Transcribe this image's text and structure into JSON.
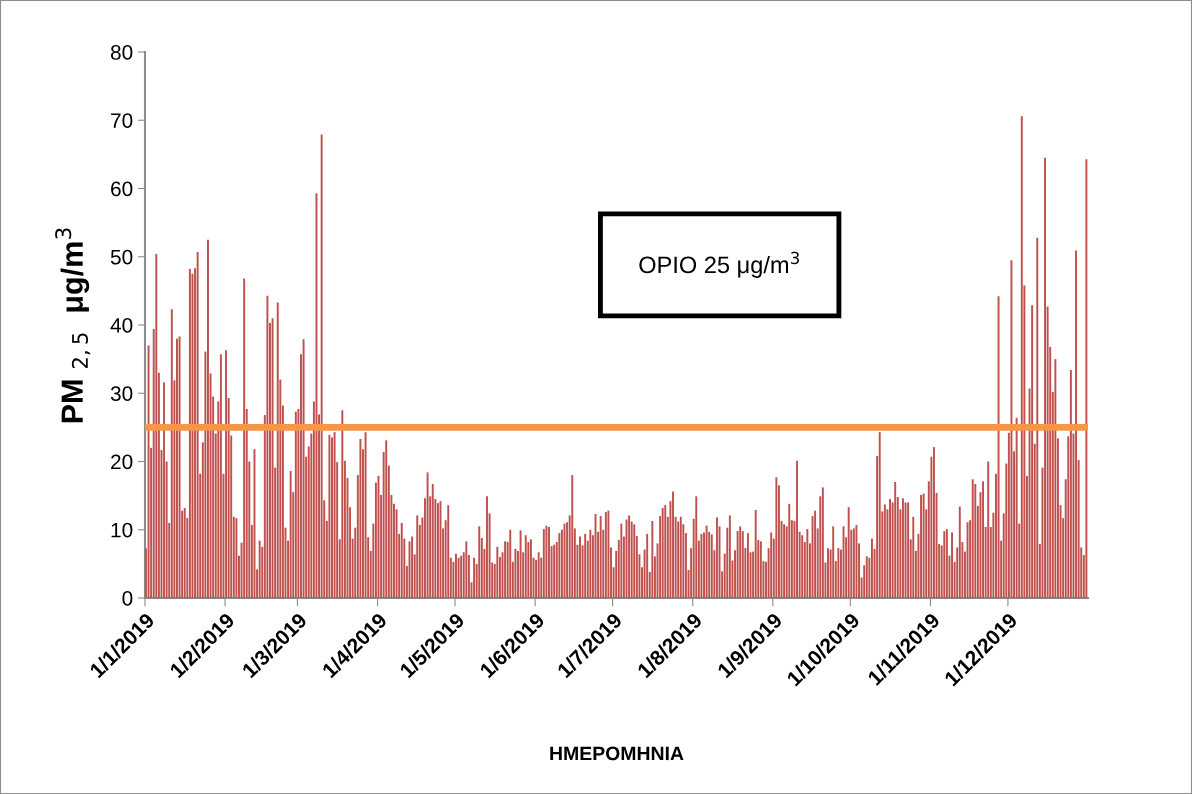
{
  "chart_data": {
    "type": "bar",
    "xlabel": "ΗΜΕΡΟΜΗΝΙΑ",
    "ylabel": "PM $_{2,5}$  μg/m$^{3}$",
    "x": [
      "2019-01-01",
      "2019-01-02",
      "2019-01-03",
      "2019-01-04",
      "2019-01-05",
      "2019-01-06",
      "2019-01-07",
      "2019-01-08",
      "2019-01-09",
      "2019-01-10",
      "2019-01-11",
      "2019-01-12",
      "2019-01-13",
      "2019-01-14",
      "2019-01-15",
      "2019-01-16",
      "2019-01-17",
      "2019-01-18",
      "2019-01-19",
      "2019-01-20",
      "2019-01-21",
      "2019-01-22",
      "2019-01-23",
      "2019-01-24",
      "2019-01-25",
      "2019-01-26",
      "2019-01-27",
      "2019-01-28",
      "2019-01-29",
      "2019-01-30",
      "2019-01-31",
      "2019-02-01",
      "2019-02-02",
      "2019-02-03",
      "2019-02-04",
      "2019-02-05",
      "2019-02-06",
      "2019-02-07",
      "2019-02-08",
      "2019-02-09",
      "2019-02-10",
      "2019-02-11",
      "2019-02-12",
      "2019-02-13",
      "2019-02-14",
      "2019-02-15",
      "2019-02-16",
      "2019-02-17",
      "2019-02-18",
      "2019-02-19",
      "2019-02-20",
      "2019-02-21",
      "2019-02-22",
      "2019-02-23",
      "2019-02-24",
      "2019-02-25",
      "2019-02-26",
      "2019-02-27",
      "2019-02-28",
      "2019-03-01",
      "2019-03-02",
      "2019-03-03",
      "2019-03-04",
      "2019-03-05",
      "2019-03-06",
      "2019-03-07",
      "2019-03-08",
      "2019-03-09",
      "2019-03-10",
      "2019-03-11",
      "2019-03-12",
      "2019-03-13",
      "2019-03-14",
      "2019-03-15",
      "2019-03-16",
      "2019-03-17",
      "2019-03-18",
      "2019-03-19",
      "2019-03-20",
      "2019-03-21",
      "2019-03-22",
      "2019-03-23",
      "2019-03-24",
      "2019-03-25",
      "2019-03-26",
      "2019-03-27",
      "2019-03-28",
      "2019-03-29",
      "2019-03-30",
      "2019-03-31",
      "2019-04-01",
      "2019-04-02",
      "2019-04-03",
      "2019-04-04",
      "2019-04-05",
      "2019-04-06",
      "2019-04-07",
      "2019-04-08",
      "2019-04-09",
      "2019-04-10",
      "2019-04-11",
      "2019-04-12",
      "2019-04-13",
      "2019-04-14",
      "2019-04-15",
      "2019-04-16",
      "2019-04-17",
      "2019-04-18",
      "2019-04-19",
      "2019-04-20",
      "2019-04-21",
      "2019-04-22",
      "2019-04-23",
      "2019-04-24",
      "2019-04-25",
      "2019-04-26",
      "2019-04-27",
      "2019-04-28",
      "2019-04-29",
      "2019-04-30",
      "2019-05-01",
      "2019-05-02",
      "2019-05-03",
      "2019-05-04",
      "2019-05-05",
      "2019-05-06",
      "2019-05-07",
      "2019-05-08",
      "2019-05-09",
      "2019-05-10",
      "2019-05-11",
      "2019-05-12",
      "2019-05-13",
      "2019-05-14",
      "2019-05-15",
      "2019-05-16",
      "2019-05-17",
      "2019-05-18",
      "2019-05-19",
      "2019-05-20",
      "2019-05-21",
      "2019-05-22",
      "2019-05-23",
      "2019-05-24",
      "2019-05-25",
      "2019-05-26",
      "2019-05-27",
      "2019-05-28",
      "2019-05-29",
      "2019-05-30",
      "2019-05-31",
      "2019-06-01",
      "2019-06-02",
      "2019-06-03",
      "2019-06-04",
      "2019-06-05",
      "2019-06-06",
      "2019-06-07",
      "2019-06-08",
      "2019-06-09",
      "2019-06-10",
      "2019-06-11",
      "2019-06-12",
      "2019-06-13",
      "2019-06-14",
      "2019-06-15",
      "2019-06-16",
      "2019-06-17",
      "2019-06-18",
      "2019-06-19",
      "2019-06-20",
      "2019-06-21",
      "2019-06-22",
      "2019-06-23",
      "2019-06-24",
      "2019-06-25",
      "2019-06-26",
      "2019-06-27",
      "2019-06-28",
      "2019-06-29",
      "2019-06-30",
      "2019-07-01",
      "2019-07-02",
      "2019-07-03",
      "2019-07-04",
      "2019-07-05",
      "2019-07-06",
      "2019-07-07",
      "2019-07-08",
      "2019-07-09",
      "2019-07-10",
      "2019-07-11",
      "2019-07-12",
      "2019-07-13",
      "2019-07-14",
      "2019-07-15",
      "2019-07-16",
      "2019-07-17",
      "2019-07-18",
      "2019-07-19",
      "2019-07-20",
      "2019-07-21",
      "2019-07-22",
      "2019-07-23",
      "2019-07-24",
      "2019-07-25",
      "2019-07-26",
      "2019-07-27",
      "2019-07-28",
      "2019-07-29",
      "2019-07-30",
      "2019-07-31",
      "2019-08-01",
      "2019-08-02",
      "2019-08-03",
      "2019-08-04",
      "2019-08-05",
      "2019-08-06",
      "2019-08-07",
      "2019-08-08",
      "2019-08-09",
      "2019-08-10",
      "2019-08-11",
      "2019-08-12",
      "2019-08-13",
      "2019-08-14",
      "2019-08-15",
      "2019-08-16",
      "2019-08-17",
      "2019-08-18",
      "2019-08-19",
      "2019-08-20",
      "2019-08-21",
      "2019-08-22",
      "2019-08-23",
      "2019-08-24",
      "2019-08-25",
      "2019-08-26",
      "2019-08-27",
      "2019-08-28",
      "2019-08-29",
      "2019-08-30",
      "2019-08-31",
      "2019-09-01",
      "2019-09-02",
      "2019-09-03",
      "2019-09-04",
      "2019-09-05",
      "2019-09-06",
      "2019-09-07",
      "2019-09-08",
      "2019-09-09",
      "2019-09-10",
      "2019-09-11",
      "2019-09-12",
      "2019-09-13",
      "2019-09-14",
      "2019-09-15",
      "2019-09-16",
      "2019-09-17",
      "2019-09-18",
      "2019-09-19",
      "2019-09-20",
      "2019-09-21",
      "2019-09-22",
      "2019-09-23",
      "2019-09-24",
      "2019-09-25",
      "2019-09-26",
      "2019-09-27",
      "2019-09-28",
      "2019-09-29",
      "2019-09-30",
      "2019-10-01",
      "2019-10-02",
      "2019-10-03",
      "2019-10-04",
      "2019-10-05",
      "2019-10-06",
      "2019-10-07",
      "2019-10-08",
      "2019-10-09",
      "2019-10-10",
      "2019-10-11",
      "2019-10-12",
      "2019-10-13",
      "2019-10-14",
      "2019-10-15",
      "2019-10-16",
      "2019-10-17",
      "2019-10-18",
      "2019-10-19",
      "2019-10-20",
      "2019-10-21",
      "2019-10-22",
      "2019-10-23",
      "2019-10-24",
      "2019-10-25",
      "2019-10-26",
      "2019-10-27",
      "2019-10-28",
      "2019-10-29",
      "2019-10-30",
      "2019-10-31",
      "2019-11-01",
      "2019-11-02",
      "2019-11-03",
      "2019-11-04",
      "2019-11-05",
      "2019-11-06",
      "2019-11-07",
      "2019-11-08",
      "2019-11-09",
      "2019-11-10",
      "2019-11-11",
      "2019-11-12",
      "2019-11-13",
      "2019-11-14",
      "2019-11-15",
      "2019-11-16",
      "2019-11-17",
      "2019-11-18",
      "2019-11-19",
      "2019-11-20",
      "2019-11-21",
      "2019-11-22",
      "2019-11-23",
      "2019-11-24",
      "2019-11-25",
      "2019-11-26",
      "2019-11-27",
      "2019-11-28",
      "2019-11-29",
      "2019-11-30",
      "2019-12-01",
      "2019-12-02",
      "2019-12-03",
      "2019-12-04",
      "2019-12-05",
      "2019-12-06",
      "2019-12-07",
      "2019-12-08",
      "2019-12-09",
      "2019-12-10",
      "2019-12-11",
      "2019-12-12",
      "2019-12-13",
      "2019-12-14",
      "2019-12-15",
      "2019-12-16",
      "2019-12-17",
      "2019-12-18",
      "2019-12-19",
      "2019-12-20",
      "2019-12-21",
      "2019-12-22",
      "2019-12-23",
      "2019-12-24",
      "2019-12-25",
      "2019-12-26",
      "2019-12-27",
      "2019-12-28",
      "2019-12-29",
      "2019-12-30",
      "2019-12-31"
    ],
    "xlim": [
      "2019-01-01",
      "2020-01-01"
    ],
    "xticks": [
      {
        "value": "2019-01-01",
        "label": "1/1/2019"
      },
      {
        "value": "2019-02-01",
        "label": "1/2/2019"
      },
      {
        "value": "2019-03-01",
        "label": "1/3/2019"
      },
      {
        "value": "2019-04-01",
        "label": "1/4/2019"
      },
      {
        "value": "2019-05-01",
        "label": "1/5/2019"
      },
      {
        "value": "2019-06-01",
        "label": "1/6/2019"
      },
      {
        "value": "2019-07-01",
        "label": "1/7/2019"
      },
      {
        "value": "2019-08-01",
        "label": "1/8/2019"
      },
      {
        "value": "2019-09-01",
        "label": "1/9/2019"
      },
      {
        "value": "2019-10-01",
        "label": "1/10/2019"
      },
      {
        "value": "2019-11-01",
        "label": "1/11/2019"
      },
      {
        "value": "2019-12-01",
        "label": "1/12/2019"
      }
    ],
    "series": [
      {
        "color": "#c0504d",
        "values": [
          7.3,
          37,
          22,
          39.4,
          50.4,
          33,
          21.7,
          31.6,
          20,
          11,
          42.3,
          31.9,
          38,
          38.3,
          12.8,
          13.2,
          11.7,
          48.2,
          47.5,
          48.3,
          50.7,
          18.2,
          22.8,
          36.1,
          52.5,
          32.9,
          29.5,
          24.1,
          28.8,
          35.7,
          18.2,
          36.3,
          29.3,
          23.8,
          11.9,
          11.7,
          6.2,
          8.1,
          46.8,
          27.7,
          20,
          10.7,
          21.8,
          4.2,
          8.4,
          7.5,
          26.8,
          44.3,
          40.3,
          41,
          19.1,
          43.3,
          32,
          28.2,
          10.3,
          8.4,
          18.6,
          15.5,
          27.3,
          27.7,
          35.7,
          37.9,
          20.7,
          22.2,
          24.1,
          28.8,
          59.3,
          26.9,
          67.9,
          14.3,
          11.3,
          23.9,
          23.5,
          24.3,
          19.9,
          8.6,
          27.5,
          20.1,
          17.6,
          13.3,
          8.7,
          10.3,
          18,
          23.3,
          21.8,
          24.3,
          8.9,
          6.9,
          10.9,
          16.9,
          17.9,
          15.1,
          21.4,
          23.1,
          19.4,
          15.1,
          13.8,
          13,
          9.4,
          11,
          8.7,
          4.7,
          8.3,
          9,
          6.4,
          12.1,
          10.7,
          11.8,
          14.6,
          18.4,
          14.9,
          16.7,
          14.5,
          13.9,
          14.2,
          10.2,
          11.4,
          13.6,
          5.9,
          5.3,
          6.5,
          5.9,
          6.2,
          6.7,
          8.3,
          6.3,
          2.3,
          5.9,
          5,
          10.5,
          8.8,
          7.2,
          14.9,
          12.4,
          5.2,
          5,
          7.5,
          6,
          6.7,
          8.3,
          8.2,
          10,
          5.3,
          7.2,
          6.9,
          9.9,
          6.7,
          9.2,
          8.2,
          8.6,
          5.9,
          5.6,
          6.7,
          5.9,
          10.1,
          10.6,
          10.4,
          7.6,
          7.8,
          8.2,
          9.5,
          10,
          10.9,
          11.1,
          12.1,
          18,
          10.2,
          7.8,
          9,
          7.7,
          9.4,
          8.4,
          10,
          9.2,
          12.3,
          9.7,
          12,
          10,
          12.6,
          12.8,
          7.4,
          4.5,
          6.9,
          8.5,
          10.9,
          9,
          11.5,
          12.1,
          11.2,
          10.8,
          9.1,
          6.4,
          4.5,
          7.1,
          9.4,
          3.8,
          11.3,
          6.1,
          8,
          12,
          13.2,
          13.6,
          11.9,
          14.2,
          15.6,
          11.9,
          11.2,
          11.9,
          10.8,
          9.5,
          4.1,
          7.3,
          11.6,
          14.9,
          8.4,
          9.4,
          9.6,
          10.6,
          9.7,
          9.3,
          7,
          11.8,
          10.5,
          3.9,
          6.5,
          10.3,
          12.1,
          5.5,
          7,
          9.8,
          10.5,
          9.8,
          7.3,
          9.5,
          6.7,
          6.8,
          12.9,
          8.5,
          8.3,
          5.4,
          5.3,
          7.3,
          9.6,
          8.7,
          17.7,
          16.5,
          11.3,
          10.8,
          10.5,
          13.8,
          11.4,
          11.3,
          20.1,
          9.7,
          9.2,
          8.2,
          10.1,
          8,
          12,
          12.8,
          10.2,
          14.9,
          16.2,
          5.2,
          7.3,
          7.1,
          10.5,
          5.4,
          7.3,
          7.1,
          10.5,
          8.9,
          13.3,
          10,
          10.2,
          10.7,
          8,
          3,
          4.8,
          6.1,
          5.9,
          8.7,
          7.2,
          20.8,
          24.3,
          12.7,
          13.7,
          13,
          14.5,
          14,
          17,
          14.8,
          13,
          14.6,
          14,
          14,
          8.6,
          11.9,
          6.9,
          9.4,
          15.1,
          15.3,
          13,
          17.1,
          20.7,
          22.1,
          15.4,
          7.9,
          7.7,
          9.8,
          10.1,
          6.2,
          9.6,
          5.3,
          7.4,
          13.4,
          8.2,
          6.8,
          11.1,
          11.4,
          17.4,
          16.7,
          13.5,
          15.5,
          17.1,
          10.4,
          20,
          10.4,
          12.5,
          18.2,
          44.2,
          8.4,
          12.4,
          19.7,
          24.2,
          49.5,
          21.5,
          26.4,
          10.9,
          70.6,
          45.8,
          17.9,
          30.7,
          42.9,
          22.6,
          52.8,
          7.9,
          19.1,
          64.5,
          42.7,
          36.8,
          30.2,
          35,
          23.4,
          13.6,
          11.7,
          17.4,
          23.7,
          33.4,
          24.1,
          50.9,
          20.2,
          7.4,
          6.3,
          64.3
        ]
      }
    ],
    "ylim": [
      0,
      80
    ],
    "yticks": [
      0,
      10,
      20,
      30,
      40,
      50,
      60,
      70,
      80
    ],
    "ref_lines": [
      {
        "axis": "y",
        "value": 25,
        "color": "#f79646",
        "line_style": "solid"
      }
    ],
    "annotations": [
      "ΟΡΙΟ 25 μg/m$^{3}$"
    ],
    "grid": false,
    "legend": false
  }
}
